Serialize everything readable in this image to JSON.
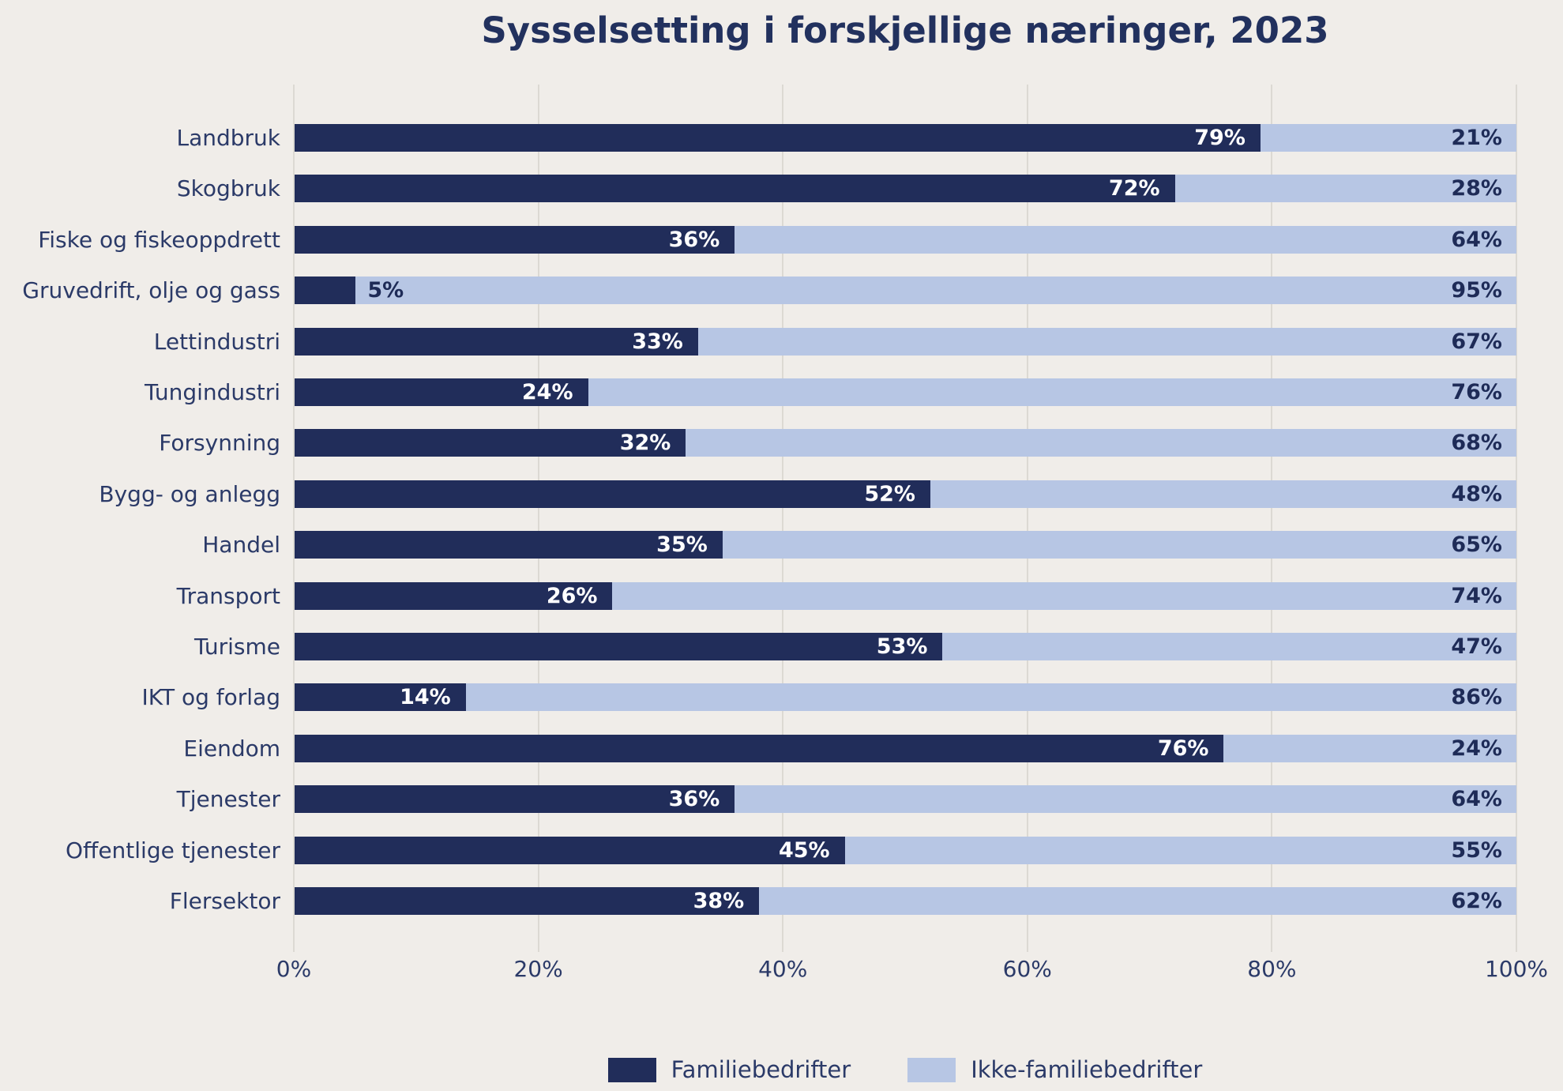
{
  "title": "Sysselsetting i forskjellige næringer, 2023",
  "colors": {
    "background": "#F0EDE9",
    "bar_family": "#212D5A",
    "bar_nonfamily": "#B7C6E4",
    "gridline": "#DCD9D3",
    "text": "#2B3A68",
    "value_on_dark": "#FFFFFF",
    "value_on_light": "#1E2B57"
  },
  "chart_data": {
    "type": "bar",
    "orientation": "horizontal-stacked",
    "title": "Sysselsetting i forskjellige næringer, 2023",
    "categories": [
      "Landbruk",
      "Skogbruk",
      "Fiske og fiskeoppdrett",
      "Gruvedrift, olje og gass",
      "Lettindustri",
      "Tungindustri",
      "Forsynning",
      "Bygg- og anlegg",
      "Handel",
      "Transport",
      "Turisme",
      "IKT og forlag",
      "Eiendom",
      "Tjenester",
      "Offentlige tjenester",
      "Flersektor"
    ],
    "series": [
      {
        "name": "Familiebedrifter",
        "color": "#212D5A",
        "values": [
          79,
          72,
          36,
          5,
          33,
          24,
          32,
          52,
          35,
          26,
          53,
          14,
          76,
          36,
          45,
          38
        ]
      },
      {
        "name": "Ikke-familiebedrifter",
        "color": "#B7C6E4",
        "values": [
          21,
          28,
          64,
          95,
          67,
          76,
          68,
          48,
          65,
          74,
          47,
          86,
          24,
          64,
          55,
          62
        ]
      }
    ],
    "value_label_format": "{value}%",
    "x_ticks": [
      "0%",
      "20%",
      "40%",
      "60%",
      "80%",
      "100%"
    ],
    "xlim": [
      0,
      100
    ],
    "grid": true,
    "legend_position": "bottom"
  }
}
